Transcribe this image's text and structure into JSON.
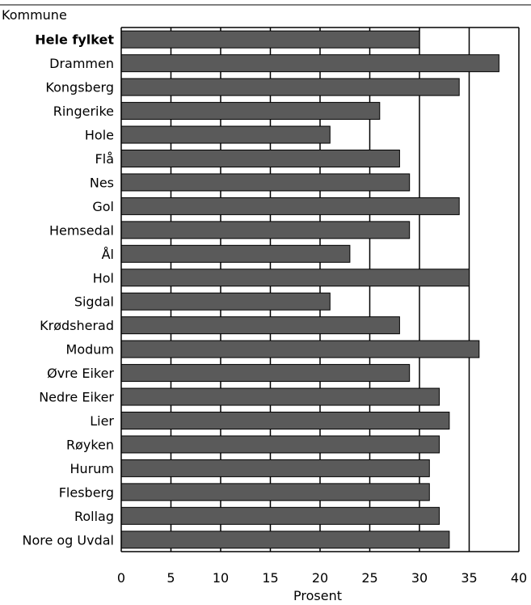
{
  "chart_data": {
    "type": "bar",
    "orientation": "horizontal",
    "y_axis_title": "Kommune",
    "xlabel": "Prosent",
    "xlim": [
      0,
      40
    ],
    "xticks": [
      0,
      5,
      10,
      15,
      20,
      25,
      30,
      35,
      40
    ],
    "grid": "vertical lines at every 5",
    "bar_color": "#5a5a5a",
    "emphasized_category": "Hele fylket",
    "categories": [
      "Hele fylket",
      "Drammen",
      "Kongsberg",
      "Ringerike",
      "Hole",
      "Flå",
      "Nes",
      "Gol",
      "Hemsedal",
      "Ål",
      "Hol",
      "Sigdal",
      "Krødsherad",
      "Modum",
      "Øvre Eiker",
      "Nedre Eiker",
      "Lier",
      "Røyken",
      "Hurum",
      "Flesberg",
      "Rollag",
      "Nore og Uvdal"
    ],
    "values": [
      30,
      38,
      34,
      26,
      21,
      28,
      29,
      34,
      29,
      23,
      35,
      21,
      28,
      36,
      29,
      32,
      33,
      32,
      31,
      31,
      32,
      33
    ]
  }
}
